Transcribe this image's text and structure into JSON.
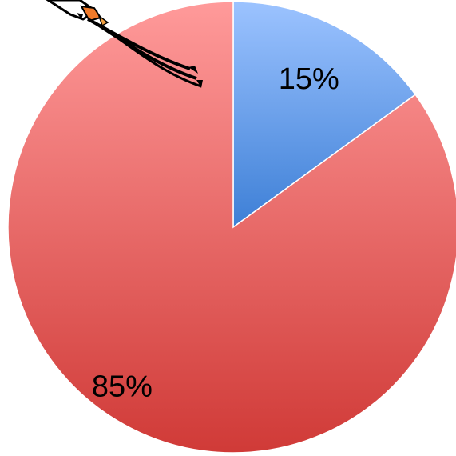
{
  "chart_data": {
    "type": "pie",
    "categories": [
      "",
      ""
    ],
    "values": [
      15,
      85
    ],
    "labels": [
      "15%",
      "85%"
    ],
    "colors": [
      "#6f9fe6",
      "#e05a5a"
    ],
    "start_angle_deg": 0,
    "direction": "clockwise",
    "legend": "none"
  },
  "decoration": {
    "icon": "skier-clipart-icon"
  }
}
